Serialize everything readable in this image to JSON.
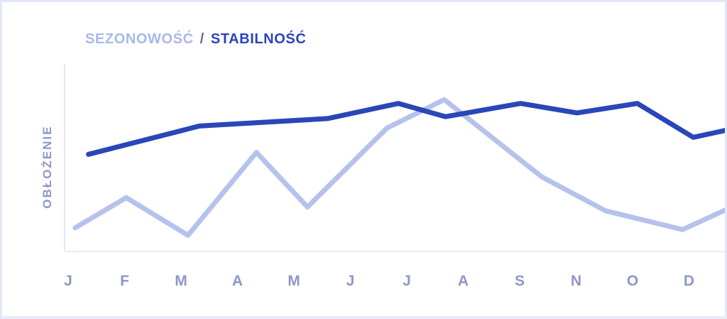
{
  "header": {
    "title_seasonal": "SEZONOWOŚĆ",
    "title_separator": "/",
    "title_stability": "STABILNOŚĆ"
  },
  "colors": {
    "title_seasonal": "#a9b8ea",
    "title_separator": "#5f6e8e",
    "title_stability": "#2b43bb",
    "seasonal_line": "#b6c2ec",
    "stability_line": "#2a46b8",
    "axis_text": "#8e97c7",
    "axis_line": "#e6eaf8",
    "card_border": "#e2e6f7"
  },
  "chart_data": {
    "type": "line",
    "title": "SEZONOWOŚĆ / STABILNOŚĆ",
    "xlabel": "",
    "ylabel": "OBŁOŻENIE",
    "x_tick_labels": [
      "J",
      "F",
      "M",
      "A",
      "M",
      "J",
      "J",
      "A",
      "S",
      "N",
      "O",
      "D"
    ],
    "y_tick_labels": [],
    "ylim": [
      0,
      100
    ],
    "grid": false,
    "legend_position": "title-inline-top-left",
    "points_format": "[x_percent_of_axis_width, occupancy_value_0_to_100]",
    "series": [
      {
        "key": "seasonal",
        "name": "SEZONOWOŚĆ",
        "color": "#b6c2ec",
        "stroke_width": 7,
        "points": [
          [
            1.7,
            13
          ],
          [
            9.4,
            29
          ],
          [
            18.7,
            9
          ],
          [
            29,
            53
          ],
          [
            36.7,
            24
          ],
          [
            48.7,
            66
          ],
          [
            57.3,
            81
          ],
          [
            72,
            40
          ],
          [
            81.6,
            22
          ],
          [
            93.2,
            12
          ],
          [
            100,
            23
          ]
        ]
      },
      {
        "key": "stability",
        "name": "STABILNOŚĆ",
        "color": "#2a46b8",
        "stroke_width": 7,
        "points": [
          [
            3.7,
            52
          ],
          [
            20.4,
            67
          ],
          [
            39.7,
            71
          ],
          [
            50.4,
            79
          ],
          [
            57.5,
            72
          ],
          [
            68.8,
            79
          ],
          [
            77.3,
            74
          ],
          [
            86.4,
            79
          ],
          [
            94.8,
            61
          ],
          [
            100,
            65
          ]
        ]
      }
    ]
  }
}
